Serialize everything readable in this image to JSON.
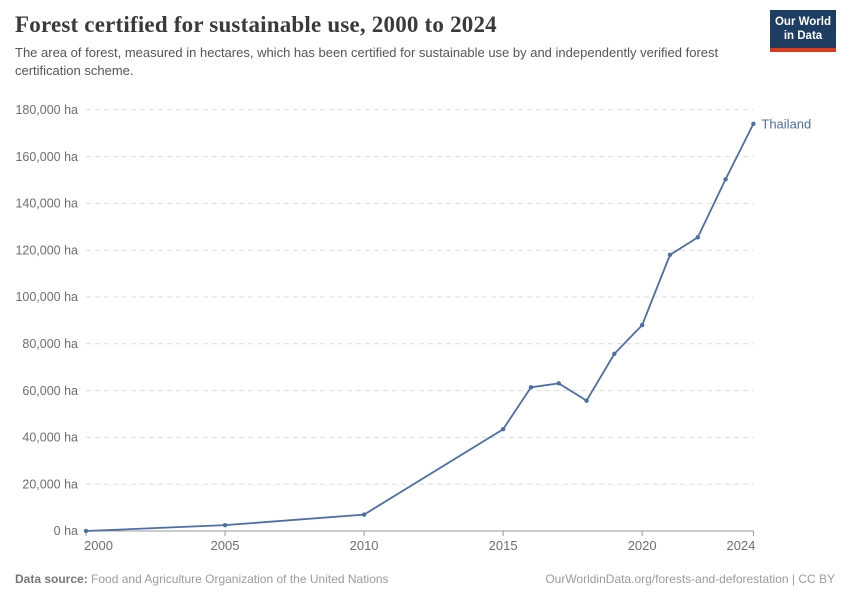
{
  "header": {
    "title": "Forest certified for sustainable use, 2000 to 2024",
    "subtitle": "The area of forest, measured in hectares, which has been certified for sustainable use by and independently verified forest certification scheme.",
    "logo": {
      "line1": "Our World",
      "line2": "in Data"
    }
  },
  "chart_data": {
    "type": "line",
    "title": "Forest certified for sustainable use, 2000 to 2024",
    "xlabel": "",
    "ylabel": "",
    "unit_suffix": " ha",
    "xlim": [
      2000,
      2024
    ],
    "ylim": [
      0,
      180000
    ],
    "x_ticks": [
      2000,
      2005,
      2010,
      2015,
      2020,
      2024
    ],
    "y_ticks": [
      0,
      20000,
      40000,
      60000,
      80000,
      100000,
      120000,
      140000,
      160000,
      180000
    ],
    "grid": true,
    "legend_position": "end-of-line",
    "series": [
      {
        "name": "Thailand",
        "color": "#4C6EA8",
        "x": [
          2000,
          2005,
          2010,
          2015,
          2016,
          2017,
          2018,
          2019,
          2020,
          2021,
          2022,
          2023,
          2024
        ],
        "values": [
          0,
          2500,
          7000,
          43500,
          61400,
          63100,
          55700,
          75700,
          88000,
          118000,
          125500,
          150300,
          174000
        ]
      }
    ]
  },
  "footer": {
    "data_source_label": "Data source:",
    "data_source_value": "Food and Agriculture Organization of the United Nations",
    "attribution": "OurWorldinData.org/forests-and-deforestation | CC BY"
  },
  "colors": {
    "line": "#4C6EA8",
    "grid": "#dcdcdc",
    "axis": "#999999",
    "tick_label": "#6e6e6e",
    "title": "#3a3a3a",
    "subtitle": "#555555",
    "footer_text": "#9b9b9b",
    "logo_bg": "#1d3d63",
    "logo_accent": "#dc3a1e"
  }
}
